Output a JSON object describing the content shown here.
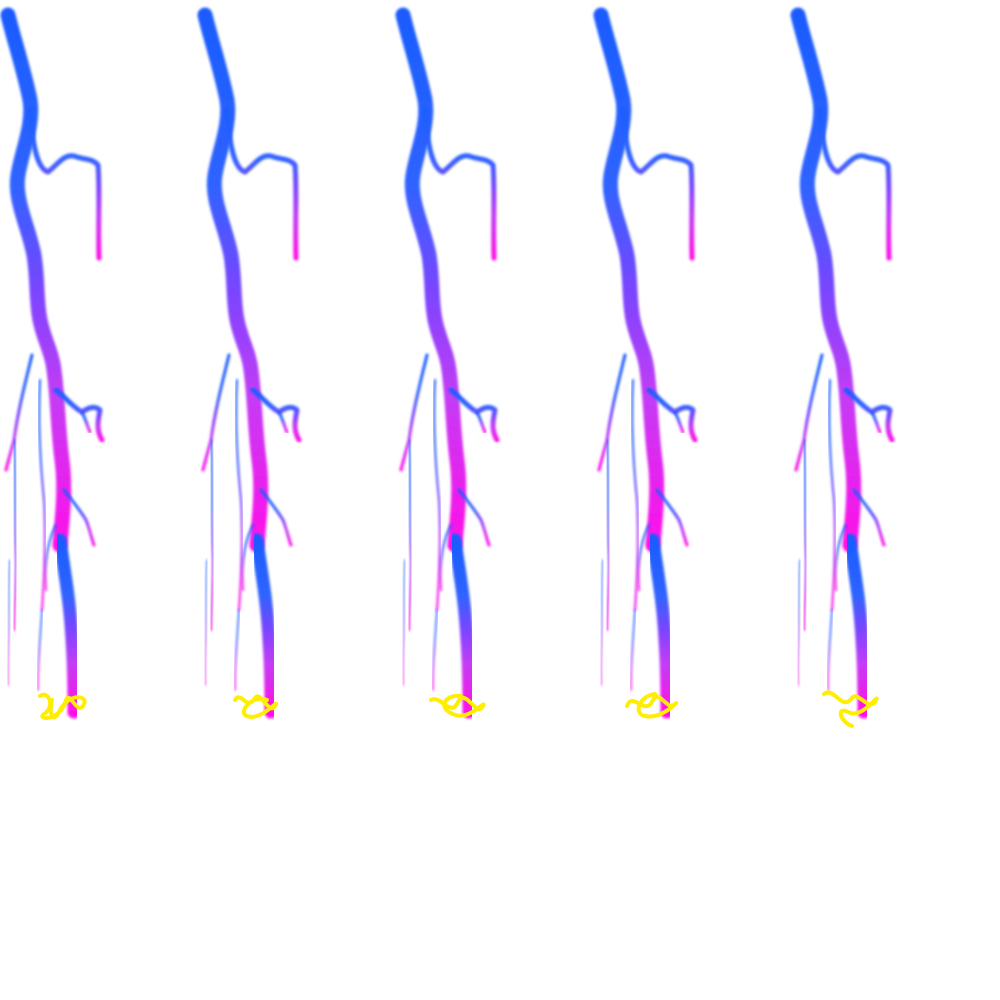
{
  "image": {
    "description_kind": "grid-of-vessel-renderings",
    "panel_count": 5,
    "background_color": "#ffffff",
    "gradient_colors": {
      "top": "#1a5cff",
      "middle": "#7a45ff",
      "bottom": "#ff10e8"
    },
    "marker_color": "#ffee00",
    "panels": [
      {
        "label": ""
      },
      {
        "label": ""
      },
      {
        "label": ""
      },
      {
        "label": ""
      },
      {
        "label": ""
      }
    ]
  }
}
